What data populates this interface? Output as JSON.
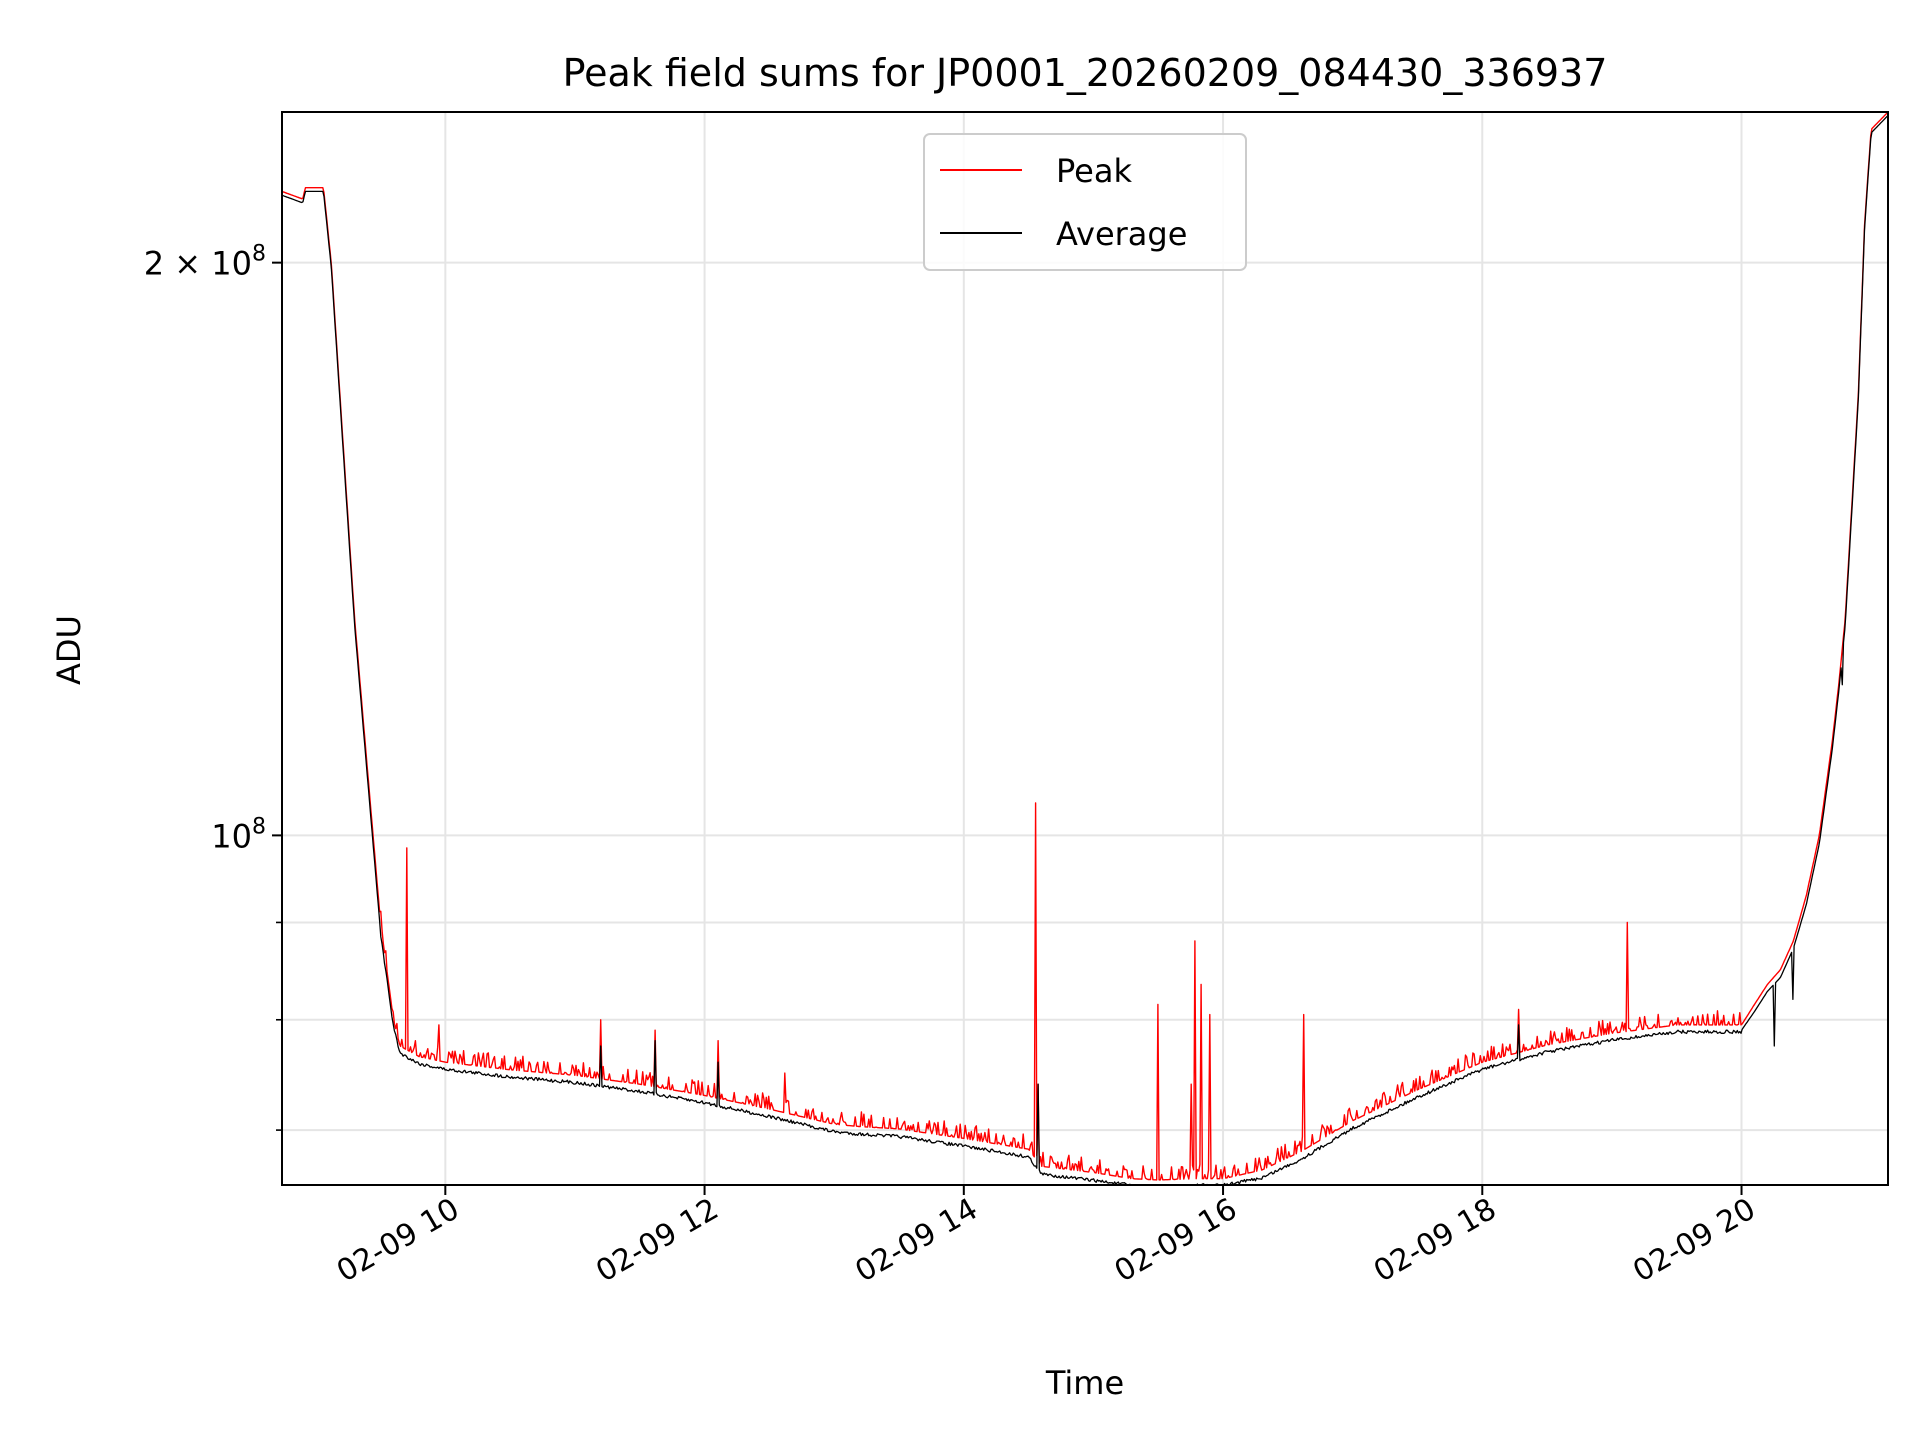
{
  "chart_data": {
    "type": "line",
    "title": "Peak field sums for JP0001_20260209_084430_336937",
    "xlabel": "Time",
    "ylabel": "ADU",
    "yscale": "log",
    "xlim": [
      8.74,
      21.13
    ],
    "ylim": [
      65500000,
      240000000
    ],
    "grid": true,
    "legend_position": "upper center",
    "x_ticks": [
      {
        "value": 10,
        "label": "02-09 10"
      },
      {
        "value": 12,
        "label": "02-09 12"
      },
      {
        "value": 14,
        "label": "02-09 14"
      },
      {
        "value": 16,
        "label": "02-09 16"
      },
      {
        "value": 18,
        "label": "02-09 18"
      },
      {
        "value": 20,
        "label": "02-09 20"
      }
    ],
    "y_major_ticks": [
      {
        "value": 100000000,
        "mantissa": "",
        "exponent": "8"
      },
      {
        "value": 200000000,
        "mantissa": "2 × ",
        "exponent": "8"
      }
    ],
    "y_minor_ticks": [
      70000000,
      80000000,
      90000000
    ],
    "series": [
      {
        "name": "Peak",
        "color": "#ff0000",
        "baseline_x": [
          8.74,
          8.9,
          8.92,
          9.06,
          9.12,
          9.3,
          9.5,
          9.6,
          9.65,
          9.8,
          10.0,
          10.5,
          11.0,
          11.5,
          12.0,
          12.5,
          13.0,
          13.2,
          13.5,
          14.0,
          14.5,
          14.6,
          15.0,
          15.3,
          15.5,
          15.8,
          16.0,
          16.3,
          16.6,
          17.0,
          17.5,
          18.0,
          18.5,
          19.0,
          19.5,
          20.0,
          20.1,
          20.2,
          20.3,
          20.4,
          20.5,
          20.6,
          20.7,
          20.75,
          20.8,
          20.9,
          20.95,
          21.0,
          21.13
        ],
        "baseline_y": [
          218000000,
          216000000,
          219000000,
          219000000,
          200000000,
          130000000,
          90000000,
          80000000,
          77500000,
          76500000,
          76000000,
          75300000,
          74800000,
          74000000,
          73000000,
          71800000,
          70500000,
          70300000,
          70100000,
          69300000,
          68400000,
          67000000,
          66500000,
          66000000,
          65900000,
          66000000,
          66000000,
          66700000,
          68200000,
          70800000,
          73500000,
          76000000,
          77600000,
          78700000,
          79500000,
          79500000,
          81500000,
          83500000,
          85000000,
          88000000,
          93000000,
          100000000,
          112000000,
          120000000,
          130000000,
          170000000,
          210000000,
          235000000,
          240000000
        ],
        "spikes": [
          {
            "x": 9.7,
            "y": 98500000
          },
          {
            "x": 9.95,
            "y": 79500000
          },
          {
            "x": 11.2,
            "y": 80000000
          },
          {
            "x": 11.62,
            "y": 79000000
          },
          {
            "x": 12.1,
            "y": 78000000
          },
          {
            "x": 12.62,
            "y": 75000000
          },
          {
            "x": 14.55,
            "y": 104000000
          },
          {
            "x": 14.57,
            "y": 74000000
          },
          {
            "x": 15.5,
            "y": 81500000
          },
          {
            "x": 15.75,
            "y": 74000000
          },
          {
            "x": 15.78,
            "y": 88000000
          },
          {
            "x": 15.83,
            "y": 83500000
          },
          {
            "x": 15.9,
            "y": 80500000
          },
          {
            "x": 16.62,
            "y": 80500000
          },
          {
            "x": 18.28,
            "y": 81000000
          },
          {
            "x": 19.12,
            "y": 90000000
          }
        ]
      },
      {
        "name": "Average",
        "color": "#000000",
        "baseline_x": [
          8.74,
          8.9,
          8.92,
          9.06,
          9.12,
          9.3,
          9.5,
          9.6,
          9.65,
          9.8,
          10.0,
          10.5,
          11.0,
          11.5,
          12.0,
          12.5,
          13.0,
          13.2,
          13.5,
          14.0,
          14.5,
          14.6,
          15.0,
          15.3,
          15.5,
          15.8,
          16.0,
          16.3,
          16.6,
          17.0,
          17.5,
          18.0,
          18.5,
          19.0,
          19.5,
          20.0,
          20.1,
          20.2,
          20.3,
          20.4,
          20.5,
          20.6,
          20.7,
          20.75,
          20.8,
          20.9,
          20.95,
          21.0,
          21.13
        ],
        "baseline_y": [
          217000000,
          215000000,
          218000000,
          218000000,
          199000000,
          129000000,
          89000000,
          79500000,
          77000000,
          76000000,
          75500000,
          74800000,
          74300000,
          73500000,
          72500000,
          71300000,
          70000000,
          69800000,
          69600000,
          68800000,
          67900000,
          66500000,
          66000000,
          65600000,
          65500000,
          65600000,
          65600000,
          66200000,
          67700000,
          70300000,
          73000000,
          75500000,
          77100000,
          78200000,
          79000000,
          79000000,
          80800000,
          82800000,
          84200000,
          87200000,
          92000000,
          99000000,
          111000000,
          119000000,
          129000000,
          169000000,
          209000000,
          234000000,
          239000000
        ],
        "spikes": [
          {
            "x": 11.2,
            "y": 77500000
          },
          {
            "x": 11.62,
            "y": 78000000
          },
          {
            "x": 12.1,
            "y": 76000000
          },
          {
            "x": 14.57,
            "y": 74000000
          },
          {
            "x": 18.28,
            "y": 79500000
          }
        ],
        "dips": [
          {
            "x": 20.25,
            "y": 77500000
          },
          {
            "x": 20.4,
            "y": 82000000
          },
          {
            "x": 20.78,
            "y": 120000000
          }
        ]
      }
    ],
    "legend": {
      "entries": [
        "Peak",
        "Average"
      ]
    }
  }
}
